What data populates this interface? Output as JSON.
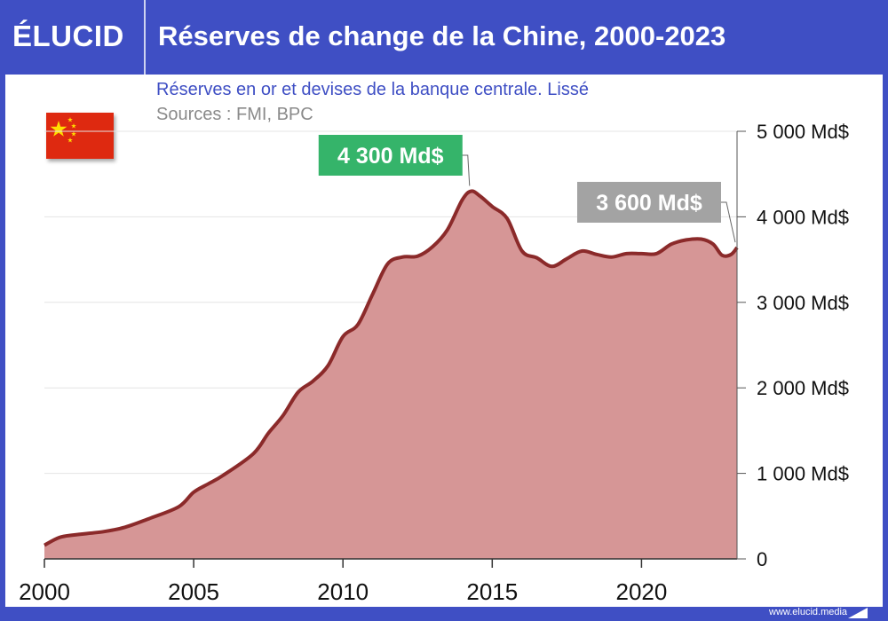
{
  "header": {
    "logo": "ÉLUCID",
    "title": "Réserves de change de la Chine, 2000-2023"
  },
  "footer": {
    "url": "www.elucid.media"
  },
  "colors": {
    "brand": "#3f4fc4",
    "area_fill": "#d69696",
    "line": "#8b2a2a",
    "peak_label_bg": "#35b46a",
    "last_label_bg": "#a3a3a3",
    "flag_red": "#de2910",
    "flag_star": "#ffde00"
  },
  "icons": {
    "flag": "china-flag-icon",
    "brand_mark": "elucid-mark-icon"
  },
  "chart_data": {
    "type": "area",
    "title": "Réserves de change de la Chine, 2000-2023",
    "subtitle": "Réserves en or et devises de la banque centrale. Lissé",
    "source": "Sources : FMI, BPC",
    "xlabel": "",
    "ylabel": "",
    "xlim": [
      2000,
      2023.2
    ],
    "ylim": [
      0,
      5000
    ],
    "grid": "horizontal",
    "x_ticks": [
      2000,
      2005,
      2010,
      2015,
      2020
    ],
    "x_tick_labels": [
      "2000",
      "2005",
      "2010",
      "2015",
      "2020"
    ],
    "y_ticks": [
      0,
      1000,
      2000,
      3000,
      4000,
      5000
    ],
    "y_tick_labels": [
      "0",
      "1 000 Md$",
      "2 000 Md$",
      "3 000 Md$",
      "4 000 Md$",
      "5 000 Md$"
    ],
    "series": [
      {
        "x": [
          2000,
          2000.5,
          2001,
          2002,
          2002.7,
          2003.5,
          2004.5,
          2005,
          2005.5,
          2006,
          2007,
          2007.5,
          2008,
          2008.5,
          2009,
          2009.5,
          2010,
          2010.5,
          2011,
          2011.5,
          2012,
          2012.5,
          2013,
          2013.5,
          2014,
          2014.3,
          2014.6,
          2015,
          2015.5,
          2016,
          2016.5,
          2017,
          2017.5,
          2018,
          2018.5,
          2019,
          2019.5,
          2020,
          2020.5,
          2021,
          2021.5,
          2022,
          2022.4,
          2022.7,
          2023,
          2023.2
        ],
        "y": [
          160,
          250,
          280,
          320,
          370,
          470,
          610,
          780,
          880,
          980,
          1230,
          1470,
          1680,
          1950,
          2080,
          2260,
          2600,
          2740,
          3100,
          3450,
          3530,
          3540,
          3650,
          3850,
          4200,
          4300,
          4240,
          4120,
          3980,
          3600,
          3520,
          3420,
          3510,
          3600,
          3560,
          3530,
          3570,
          3570,
          3570,
          3680,
          3730,
          3740,
          3680,
          3550,
          3560,
          3640
        ]
      }
    ],
    "annotations": [
      {
        "text": "4 300 Md$",
        "x": 2014.3,
        "y": 4300,
        "style": "peak"
      },
      {
        "text": "3 600 Md$",
        "x": 2023.2,
        "y": 3640,
        "style": "last"
      }
    ]
  }
}
